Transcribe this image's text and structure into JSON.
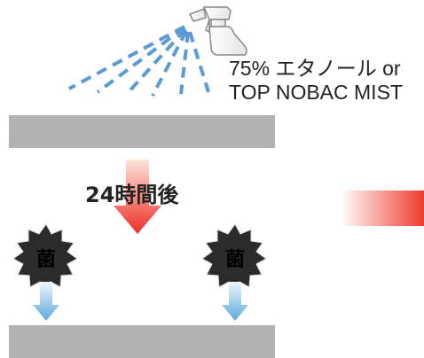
{
  "product_label": {
    "line1": "75% エタノール or",
    "line2": "TOP NOBAC MIST"
  },
  "time_label": "24時間後",
  "germ_label": "菌",
  "colors": {
    "surface": "#b3b3b3",
    "spray": "#5b9bd5",
    "red_arrow_top": "#fde4dc",
    "red_arrow_bottom": "#ee2e24",
    "blue_arrow_top": "#eef6fc",
    "blue_arrow_bottom": "#5ea9e0",
    "germ_fill": "#2b2b2b"
  },
  "icons": [
    "spray-bottle-icon",
    "germ-icon"
  ]
}
